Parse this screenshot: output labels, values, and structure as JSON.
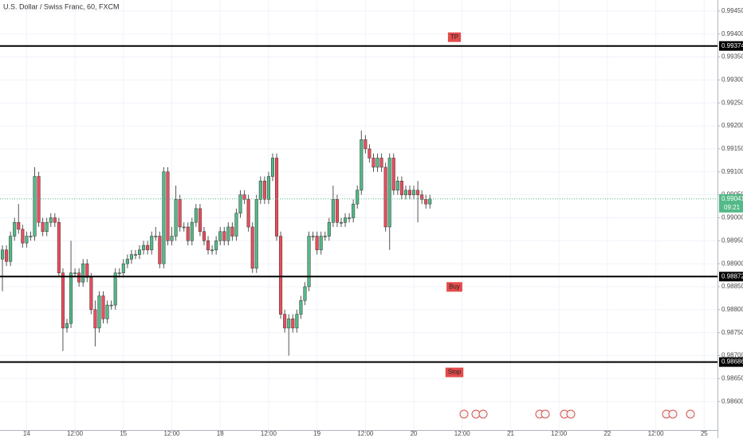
{
  "chart_data": {
    "type": "candlestick",
    "title": "U.S. Dollar / Swiss Franc, 60, FXCM",
    "up_color": "#53b987",
    "down_color": "#eb4d5c",
    "grid": true,
    "open": [
      0.9891,
      0.9893,
      0.98905,
      0.9896,
      0.9899,
      0.98975,
      0.98945,
      0.9896,
      0.9896,
      0.9909,
      0.9899,
      0.9897,
      0.9899,
      0.99,
      0.9899,
      0.9888,
      0.9876,
      0.9877,
      0.9888,
      0.9888,
      0.9886,
      0.989,
      0.9887,
      0.988,
      0.9876,
      0.9883,
      0.9878,
      0.9881,
      0.9881,
      0.9888,
      0.9888,
      0.989,
      0.9891,
      0.9892,
      0.9892,
      0.9893,
      0.9894,
      0.9893,
      0.9896,
      0.9896,
      0.989,
      0.991,
      0.9895,
      0.9896,
      0.9904,
      0.9898,
      0.9898,
      0.9895,
      0.9899,
      0.9902,
      0.9897,
      0.9895,
      0.9893,
      0.9893,
      0.9895,
      0.9897,
      0.9895,
      0.9898,
      0.9896,
      0.9901,
      0.9905,
      0.9904,
      0.9898,
      0.9889,
      0.9904,
      0.9908,
      0.9904,
      0.9909,
      0.9913,
      0.9896,
      0.9879,
      0.9876,
      0.9878,
      0.9876,
      0.9879,
      0.9882,
      0.9885,
      0.9896,
      0.9896,
      0.9893,
      0.9896,
      0.9896,
      0.9899,
      0.9904,
      0.9899,
      0.9899,
      0.99,
      0.99,
      0.9903,
      0.9906,
      0.9917,
      0.9915,
      0.9913,
      0.9911,
      0.9913,
      0.9911,
      0.9898,
      0.9913,
      0.9906,
      0.9908,
      0.9905,
      0.9906,
      0.9905,
      0.9906,
      0.9905,
      0.9904,
      0.9903
    ],
    "high": [
      0.9894,
      0.9894,
      0.9897,
      0.99,
      0.9903,
      0.98985,
      0.9897,
      0.9897,
      0.9911,
      0.991,
      0.99,
      0.99,
      0.9901,
      0.9901,
      0.99,
      0.9889,
      0.9878,
      0.9895,
      0.9889,
      0.9889,
      0.9891,
      0.9891,
      0.9888,
      0.9882,
      0.9884,
      0.9884,
      0.9882,
      0.9882,
      0.9889,
      0.9889,
      0.9891,
      0.9892,
      0.9893,
      0.9893,
      0.9894,
      0.9895,
      0.9895,
      0.9897,
      0.9898,
      0.9897,
      0.9911,
      0.9911,
      0.9898,
      0.9907,
      0.9905,
      0.9899,
      0.9899,
      0.99,
      0.9903,
      0.9903,
      0.9898,
      0.9896,
      0.9894,
      0.9896,
      0.9898,
      0.9898,
      0.9899,
      0.9899,
      0.9902,
      0.9906,
      0.9906,
      0.9905,
      0.9899,
      0.9905,
      0.9909,
      0.9909,
      0.991,
      0.9914,
      0.9914,
      0.9897,
      0.988,
      0.9879,
      0.9879,
      0.988,
      0.9883,
      0.9886,
      0.9897,
      0.9897,
      0.9897,
      0.9897,
      0.9897,
      0.99,
      0.9907,
      0.9905,
      0.99,
      0.9901,
      0.9901,
      0.9904,
      0.9907,
      0.9919,
      0.9918,
      0.9916,
      0.9914,
      0.9914,
      0.9914,
      0.9912,
      0.9914,
      0.9914,
      0.9909,
      0.9909,
      0.9907,
      0.9907,
      0.9907,
      0.9908,
      0.9906,
      0.9905,
      0.9905
    ],
    "low": [
      0.9884,
      0.98895,
      0.98895,
      0.9895,
      0.98965,
      0.98935,
      0.98935,
      0.9895,
      0.9895,
      0.9898,
      0.9896,
      0.9896,
      0.9898,
      0.9898,
      0.9887,
      0.9871,
      0.9875,
      0.9876,
      0.9887,
      0.9885,
      0.9885,
      0.9886,
      0.9879,
      0.9872,
      0.9875,
      0.9877,
      0.9877,
      0.988,
      0.988,
      0.9887,
      0.9887,
      0.9889,
      0.989,
      0.9891,
      0.9891,
      0.9892,
      0.9892,
      0.9892,
      0.9895,
      0.9889,
      0.9889,
      0.9894,
      0.9894,
      0.9895,
      0.9897,
      0.9897,
      0.9894,
      0.9894,
      0.9898,
      0.9896,
      0.9894,
      0.9892,
      0.9892,
      0.9892,
      0.9894,
      0.9894,
      0.9894,
      0.9895,
      0.9895,
      0.99,
      0.9903,
      0.9897,
      0.9888,
      0.9888,
      0.9903,
      0.9903,
      0.9903,
      0.9908,
      0.9895,
      0.9878,
      0.9875,
      0.987,
      0.9875,
      0.9875,
      0.9878,
      0.9881,
      0.9884,
      0.9895,
      0.9892,
      0.9892,
      0.9895,
      0.9895,
      0.9898,
      0.9898,
      0.9898,
      0.9898,
      0.9899,
      0.9899,
      0.9902,
      0.9905,
      0.9914,
      0.9912,
      0.991,
      0.991,
      0.991,
      0.9897,
      0.9893,
      0.9905,
      0.9905,
      0.9904,
      0.9904,
      0.9904,
      0.9904,
      0.9899,
      0.9903,
      0.9902,
      0.9902
    ],
    "close": [
      0.9893,
      0.98905,
      0.9896,
      0.9899,
      0.98975,
      0.98945,
      0.9896,
      0.9896,
      0.9909,
      0.9899,
      0.9897,
      0.9899,
      0.99,
      0.9899,
      0.9888,
      0.9876,
      0.9877,
      0.9888,
      0.9888,
      0.9886,
      0.989,
      0.9887,
      0.988,
      0.9876,
      0.9883,
      0.9878,
      0.9881,
      0.9881,
      0.9888,
      0.9888,
      0.989,
      0.9891,
      0.9892,
      0.9892,
      0.9893,
      0.9894,
      0.9893,
      0.9896,
      0.9896,
      0.989,
      0.991,
      0.9895,
      0.9896,
      0.9904,
      0.9898,
      0.9898,
      0.9895,
      0.9899,
      0.9902,
      0.9897,
      0.9895,
      0.9893,
      0.9893,
      0.9895,
      0.9897,
      0.9895,
      0.9898,
      0.9896,
      0.9901,
      0.9905,
      0.9904,
      0.9898,
      0.9889,
      0.9904,
      0.9908,
      0.9904,
      0.9909,
      0.9913,
      0.9896,
      0.9879,
      0.9876,
      0.9878,
      0.9876,
      0.9879,
      0.9882,
      0.9885,
      0.9896,
      0.9896,
      0.9893,
      0.9896,
      0.9896,
      0.9899,
      0.9904,
      0.9899,
      0.9899,
      0.99,
      0.99,
      0.9903,
      0.9906,
      0.9917,
      0.9915,
      0.9913,
      0.9911,
      0.9913,
      0.9911,
      0.9898,
      0.9913,
      0.9906,
      0.9908,
      0.9905,
      0.9906,
      0.9905,
      0.9906,
      0.9905,
      0.9904,
      0.9903,
      0.99041
    ],
    "ylim": [
      0.98538,
      0.99474
    ],
    "yticks": [
      {
        "value": 0.9945,
        "label": "0.99450"
      },
      {
        "value": 0.994,
        "label": "0.99400"
      },
      {
        "value": 0.9935,
        "label": "0.99350"
      },
      {
        "value": 0.993,
        "label": "0.99300"
      },
      {
        "value": 0.9925,
        "label": "0.99250"
      },
      {
        "value": 0.992,
        "label": "0.99200"
      },
      {
        "value": 0.9915,
        "label": "0.99150"
      },
      {
        "value": 0.991,
        "label": "0.99100"
      },
      {
        "value": 0.9905,
        "label": "0.99050"
      },
      {
        "value": 0.99,
        "label": "0.99000"
      },
      {
        "value": 0.9895,
        "label": "0.98950"
      },
      {
        "value": 0.989,
        "label": "0.98900"
      },
      {
        "value": 0.9885,
        "label": "0.98850"
      },
      {
        "value": 0.988,
        "label": "0.98800"
      },
      {
        "value": 0.9875,
        "label": "0.98750"
      },
      {
        "value": 0.987,
        "label": "0.98700"
      },
      {
        "value": 0.9865,
        "label": "0.98650"
      },
      {
        "value": 0.986,
        "label": "0.98600"
      }
    ],
    "xlim": [
      -0.6,
      177.3
    ],
    "xticks": [
      {
        "value": 6,
        "label": "14"
      },
      {
        "value": 18,
        "label": "12:00"
      },
      {
        "value": 30,
        "label": "15"
      },
      {
        "value": 42,
        "label": "12:00"
      },
      {
        "value": 54,
        "label": "18"
      },
      {
        "value": 66,
        "label": "12:00"
      },
      {
        "value": 78,
        "label": "19"
      },
      {
        "value": 90,
        "label": "12:00"
      },
      {
        "value": 102,
        "label": "20"
      },
      {
        "value": 114,
        "label": "12:00"
      },
      {
        "value": 126,
        "label": "21"
      },
      {
        "value": 138,
        "label": "12:00"
      },
      {
        "value": 150,
        "label": "22"
      },
      {
        "value": 162,
        "label": "12:00"
      },
      {
        "value": 174,
        "label": "25"
      }
    ],
    "levels": [
      {
        "name": "TP",
        "value": 0.99374
      },
      {
        "name": "Buy",
        "value": 0.98872
      },
      {
        "name": "Stop",
        "value": 0.98686
      }
    ],
    "last": {
      "value": 0.99041,
      "countdown": "09:21"
    }
  }
}
